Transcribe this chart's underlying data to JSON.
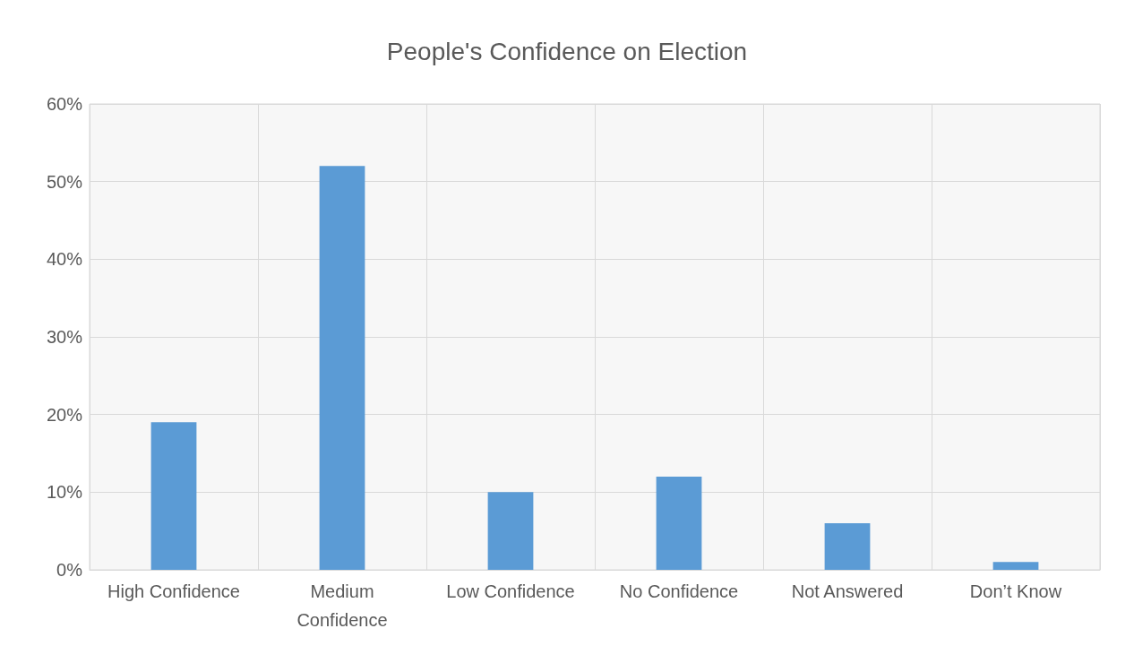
{
  "chart_data": {
    "type": "bar",
    "title": "People's Confidence on Election",
    "categories": [
      "High Confidence",
      "Medium Confidence",
      "Low Confidence",
      "No Confidence",
      "Not Answered",
      "Don’t Know"
    ],
    "values": [
      19,
      52,
      10,
      12,
      6,
      1
    ],
    "color": "#5b9bd5",
    "ylim": [
      0,
      60
    ],
    "yticks": [
      {
        "value": 0,
        "label": "0%"
      },
      {
        "value": 10,
        "label": "10%"
      },
      {
        "value": 20,
        "label": "20%"
      },
      {
        "value": 30,
        "label": "30%"
      },
      {
        "value": 40,
        "label": "40%"
      },
      {
        "value": 50,
        "label": "50%"
      },
      {
        "value": 60,
        "label": "60%"
      }
    ],
    "grid": true
  }
}
